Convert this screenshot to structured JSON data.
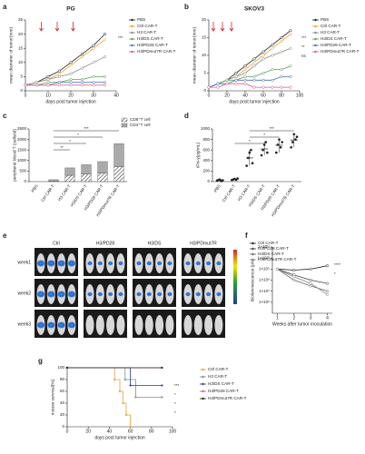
{
  "chart_data": [
    {
      "panel": "a",
      "type": "line",
      "title": "PG",
      "xlabel": "days post tumor injection",
      "ylabel": "mean diameter of tumor(mm)",
      "x": [
        0,
        5,
        10,
        15,
        20,
        25,
        30,
        35
      ],
      "xlim": [
        0,
        40
      ],
      "xticks": [
        0,
        10,
        20,
        30,
        40
      ],
      "ylim": [
        0,
        25
      ],
      "yticks": [
        0,
        5,
        10,
        15,
        20,
        25
      ],
      "arrow_days": [
        7,
        14,
        21
      ],
      "arrow_color": "#d62728",
      "annotations": [
        "***"
      ],
      "series": [
        {
          "name": "PBS",
          "color": "#222222",
          "values": [
            2,
            3,
            5,
            7,
            10,
            13,
            16,
            20
          ]
        },
        {
          "name": "Ctrl CAR-T",
          "color": "#e8a33a",
          "values": [
            2,
            3,
            4,
            6,
            9,
            12,
            15,
            18
          ]
        },
        {
          "name": "H3 CAR-T",
          "color": "#8a8a8a",
          "values": [
            2,
            3,
            4,
            5,
            6,
            8,
            10,
            12
          ]
        },
        {
          "name": "H3/DS CAR-T",
          "color": "#5aa05a",
          "values": [
            2,
            2,
            3,
            3,
            4,
            4,
            5,
            5
          ]
        },
        {
          "name": "H3/PD28 CAR-T",
          "color": "#4a6fc0",
          "values": [
            2,
            2,
            2,
            3,
            3,
            3,
            3,
            3
          ]
        },
        {
          "name": "H3/PDmut7R CAR-T",
          "color": "#d65a8a",
          "values": [
            2,
            2,
            2,
            2,
            2,
            2,
            2,
            2
          ]
        }
      ]
    },
    {
      "panel": "b",
      "type": "line",
      "title": "SKOV3",
      "xlabel": "days post tumor injection",
      "ylabel": "mean diameter of tumor(mm)",
      "x": [
        0,
        10,
        20,
        30,
        40,
        50,
        60,
        70,
        80,
        90
      ],
      "xlim": [
        0,
        100
      ],
      "xticks": [
        0,
        20,
        40,
        60,
        80,
        100
      ],
      "ylim": [
        0,
        20
      ],
      "yticks": [
        0,
        5,
        10,
        15,
        20
      ],
      "arrow_days": [
        5,
        15,
        25
      ],
      "arrow_color": "#d62728",
      "annotations": [
        "***",
        "**",
        "ns"
      ],
      "series": [
        {
          "name": "PBS",
          "color": "#222222",
          "values": [
            1,
            2,
            3,
            5,
            7,
            9,
            11,
            13,
            15,
            17
          ]
        },
        {
          "name": "Ctrl CAR-T",
          "color": "#e8a33a",
          "values": [
            1,
            2,
            3,
            4,
            6,
            8,
            10,
            12,
            14,
            16
          ]
        },
        {
          "name": "H3 CAR-T",
          "color": "#8a8a8a",
          "values": [
            1,
            2,
            3,
            4,
            5,
            7,
            9,
            10,
            11,
            12
          ]
        },
        {
          "name": "H3/DS CAR-T",
          "color": "#5aa05a",
          "values": [
            1,
            2,
            3,
            3,
            4,
            4,
            5,
            6,
            6,
            7
          ]
        },
        {
          "name": "H3/PD28 CAR-T",
          "color": "#4a6fc0",
          "values": [
            1,
            2,
            2,
            3,
            3,
            3,
            3,
            3,
            4,
            4
          ]
        },
        {
          "name": "H3/PDmut7R CAR-T",
          "color": "#d65a8a",
          "values": [
            1,
            1,
            2,
            2,
            2,
            1,
            1,
            1,
            1,
            1
          ]
        }
      ]
    },
    {
      "panel": "c",
      "type": "bar",
      "stacked": true,
      "ylabel": "peripheral blood T (cells/ul)",
      "categories": [
        "PBS",
        "Ctrl CAR-T",
        "H3 CAR-T",
        "H3/DS CAR-T",
        "H3/PD28 CAR-T",
        "H3/PDmut7R CAR-T"
      ],
      "ylim": [
        0,
        2500
      ],
      "yticks": [
        0,
        500,
        1000,
        1500,
        2000,
        2500
      ],
      "annotations": [
        "***",
        "*",
        "*",
        "**"
      ],
      "series": [
        {
          "name": "CD8⁺T cell",
          "color": "#555555",
          "values": [
            0,
            30,
            300,
            350,
            400,
            700
          ]
        },
        {
          "name": "CD4⁺T cell",
          "color": "#aaaaaa",
          "values": [
            0,
            60,
            350,
            450,
            550,
            1100
          ]
        }
      ]
    },
    {
      "panel": "d",
      "type": "strip",
      "ylabel": "IFN-γ(pg/mL)",
      "categories": [
        "PBS",
        "Ctrl CAR-T",
        "H3 CAR-T",
        "H3/DS CAR-T",
        "H3/PD28 CAR-T",
        "H3/PDmut7R CAR-T"
      ],
      "ylim": [
        0,
        1000
      ],
      "yticks": [
        0,
        200,
        400,
        600,
        800,
        1000
      ],
      "color": "#222222",
      "annotations": [
        "***",
        "*",
        "*"
      ],
      "groups": [
        [
          20,
          30,
          40,
          10,
          25
        ],
        [
          30,
          40,
          50,
          35,
          60
        ],
        [
          300,
          450,
          550,
          600,
          350
        ],
        [
          500,
          600,
          700,
          750,
          550
        ],
        [
          550,
          700,
          800,
          650,
          750
        ],
        [
          650,
          750,
          900,
          800,
          850
        ]
      ]
    },
    {
      "panel": "f",
      "type": "line",
      "log_scale": true,
      "xlabel": "Weeks after tumor inoculation",
      "ylabel": "Bioluminescence (p/s)",
      "x": [
        1,
        2,
        3,
        4
      ],
      "xlim": [
        0.7,
        4.3
      ],
      "xticks": [
        1,
        2,
        3,
        4
      ],
      "ylim": [
        100000,
        100000000000
      ],
      "yticks": [
        {
          "value": 1000000,
          "label": "1×10⁶"
        },
        {
          "value": 10000000,
          "label": "1×10⁷"
        },
        {
          "value": 100000000,
          "label": "1×10⁸"
        },
        {
          "value": 1000000000,
          "label": "1×10⁹"
        },
        {
          "value": 10000000000,
          "label": "1×10¹⁰"
        },
        {
          "value": 100000000000,
          "label": "1×10¹¹"
        }
      ],
      "annotations": [
        "****",
        "*"
      ],
      "series": [
        {
          "name": "Ctrl CAR-T",
          "color": "#222222",
          "values": [
            1000000000,
            800000000,
            1000000000,
            2000000000
          ]
        },
        {
          "name": "H3/PD28 CAR-T",
          "color": "#444444",
          "values": [
            1000000000,
            300000000,
            100000000,
            50000000
          ]
        },
        {
          "name": "H3/DS CAR-T",
          "color": "#666666",
          "values": [
            1000000000,
            100000000,
            30000000,
            10000000
          ]
        },
        {
          "name": "H3/PDmut7R CAR-T",
          "color": "#888888",
          "values": [
            1000000000,
            200000000,
            50000000,
            5000000
          ]
        }
      ]
    },
    {
      "panel": "g",
      "type": "step",
      "xlabel": "days post tumor injection",
      "ylabel": "mouse survival(%)",
      "xlim": [
        0,
        100
      ],
      "xticks": [
        0,
        20,
        40,
        60,
        80,
        100
      ],
      "ylim": [
        0,
        100
      ],
      "yticks": [
        0,
        20,
        40,
        60,
        80,
        100
      ],
      "annotations": [
        "***",
        "*",
        "*",
        "*"
      ],
      "series": [
        {
          "name": "Ctrl CAR-T",
          "color": "#e8a33a",
          "x": [
            0,
            45,
            50,
            53,
            56,
            60
          ],
          "values": [
            100,
            80,
            60,
            40,
            20,
            0
          ]
        },
        {
          "name": "H3 CAR-T",
          "color": "#8a8a8a",
          "x": [
            0,
            55,
            65,
            90
          ],
          "values": [
            100,
            80,
            50,
            50
          ]
        },
        {
          "name": "H3/DS CAR-T",
          "color": "#1f3fa0",
          "x": [
            0,
            60,
            90
          ],
          "values": [
            100,
            70,
            70
          ]
        },
        {
          "name": "H3/PD28 CAR-T",
          "color": "#d65a8a",
          "x": [
            0,
            90
          ],
          "values": [
            100,
            100
          ]
        },
        {
          "name": "H3/PDmut7R CAR-T",
          "color": "#222222",
          "x": [
            0,
            90
          ],
          "values": [
            100,
            100
          ]
        }
      ]
    }
  ],
  "image_panel": {
    "panel": "e",
    "columns": [
      "Ctrl",
      "H3/PD28",
      "H3/DS",
      "H3/PDmut7R"
    ],
    "rows": [
      "week1",
      "week2",
      "week3"
    ]
  }
}
